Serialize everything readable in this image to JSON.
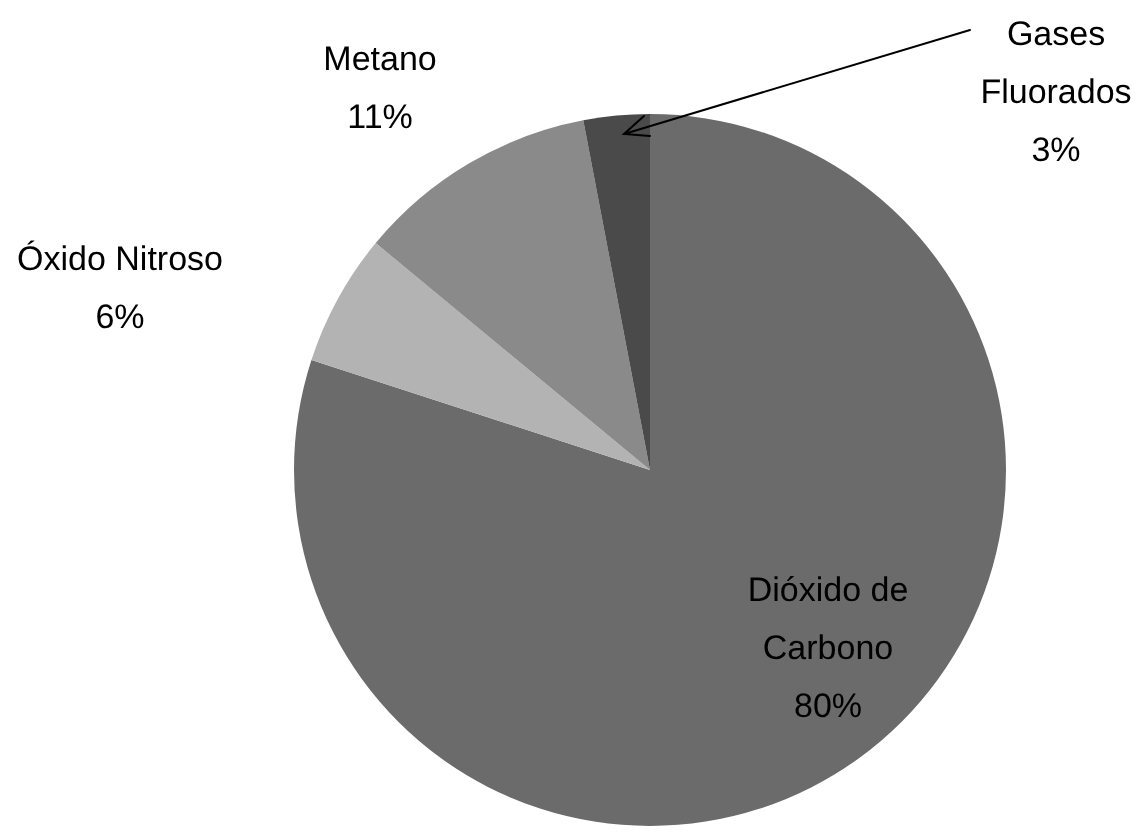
{
  "chart_data": {
    "type": "pie",
    "categories": [
      "Dióxido de Carbono",
      "Óxido Nitroso",
      "Metano",
      "Gases Fluorados"
    ],
    "values": [
      80,
      6,
      11,
      3
    ],
    "colors": [
      "#6b6b6b",
      "#b3b3b3",
      "#8a8a8a",
      "#4a4a4a"
    ],
    "value_labels": [
      "80%",
      "6%",
      "11%",
      "3%"
    ],
    "legend": false
  }
}
